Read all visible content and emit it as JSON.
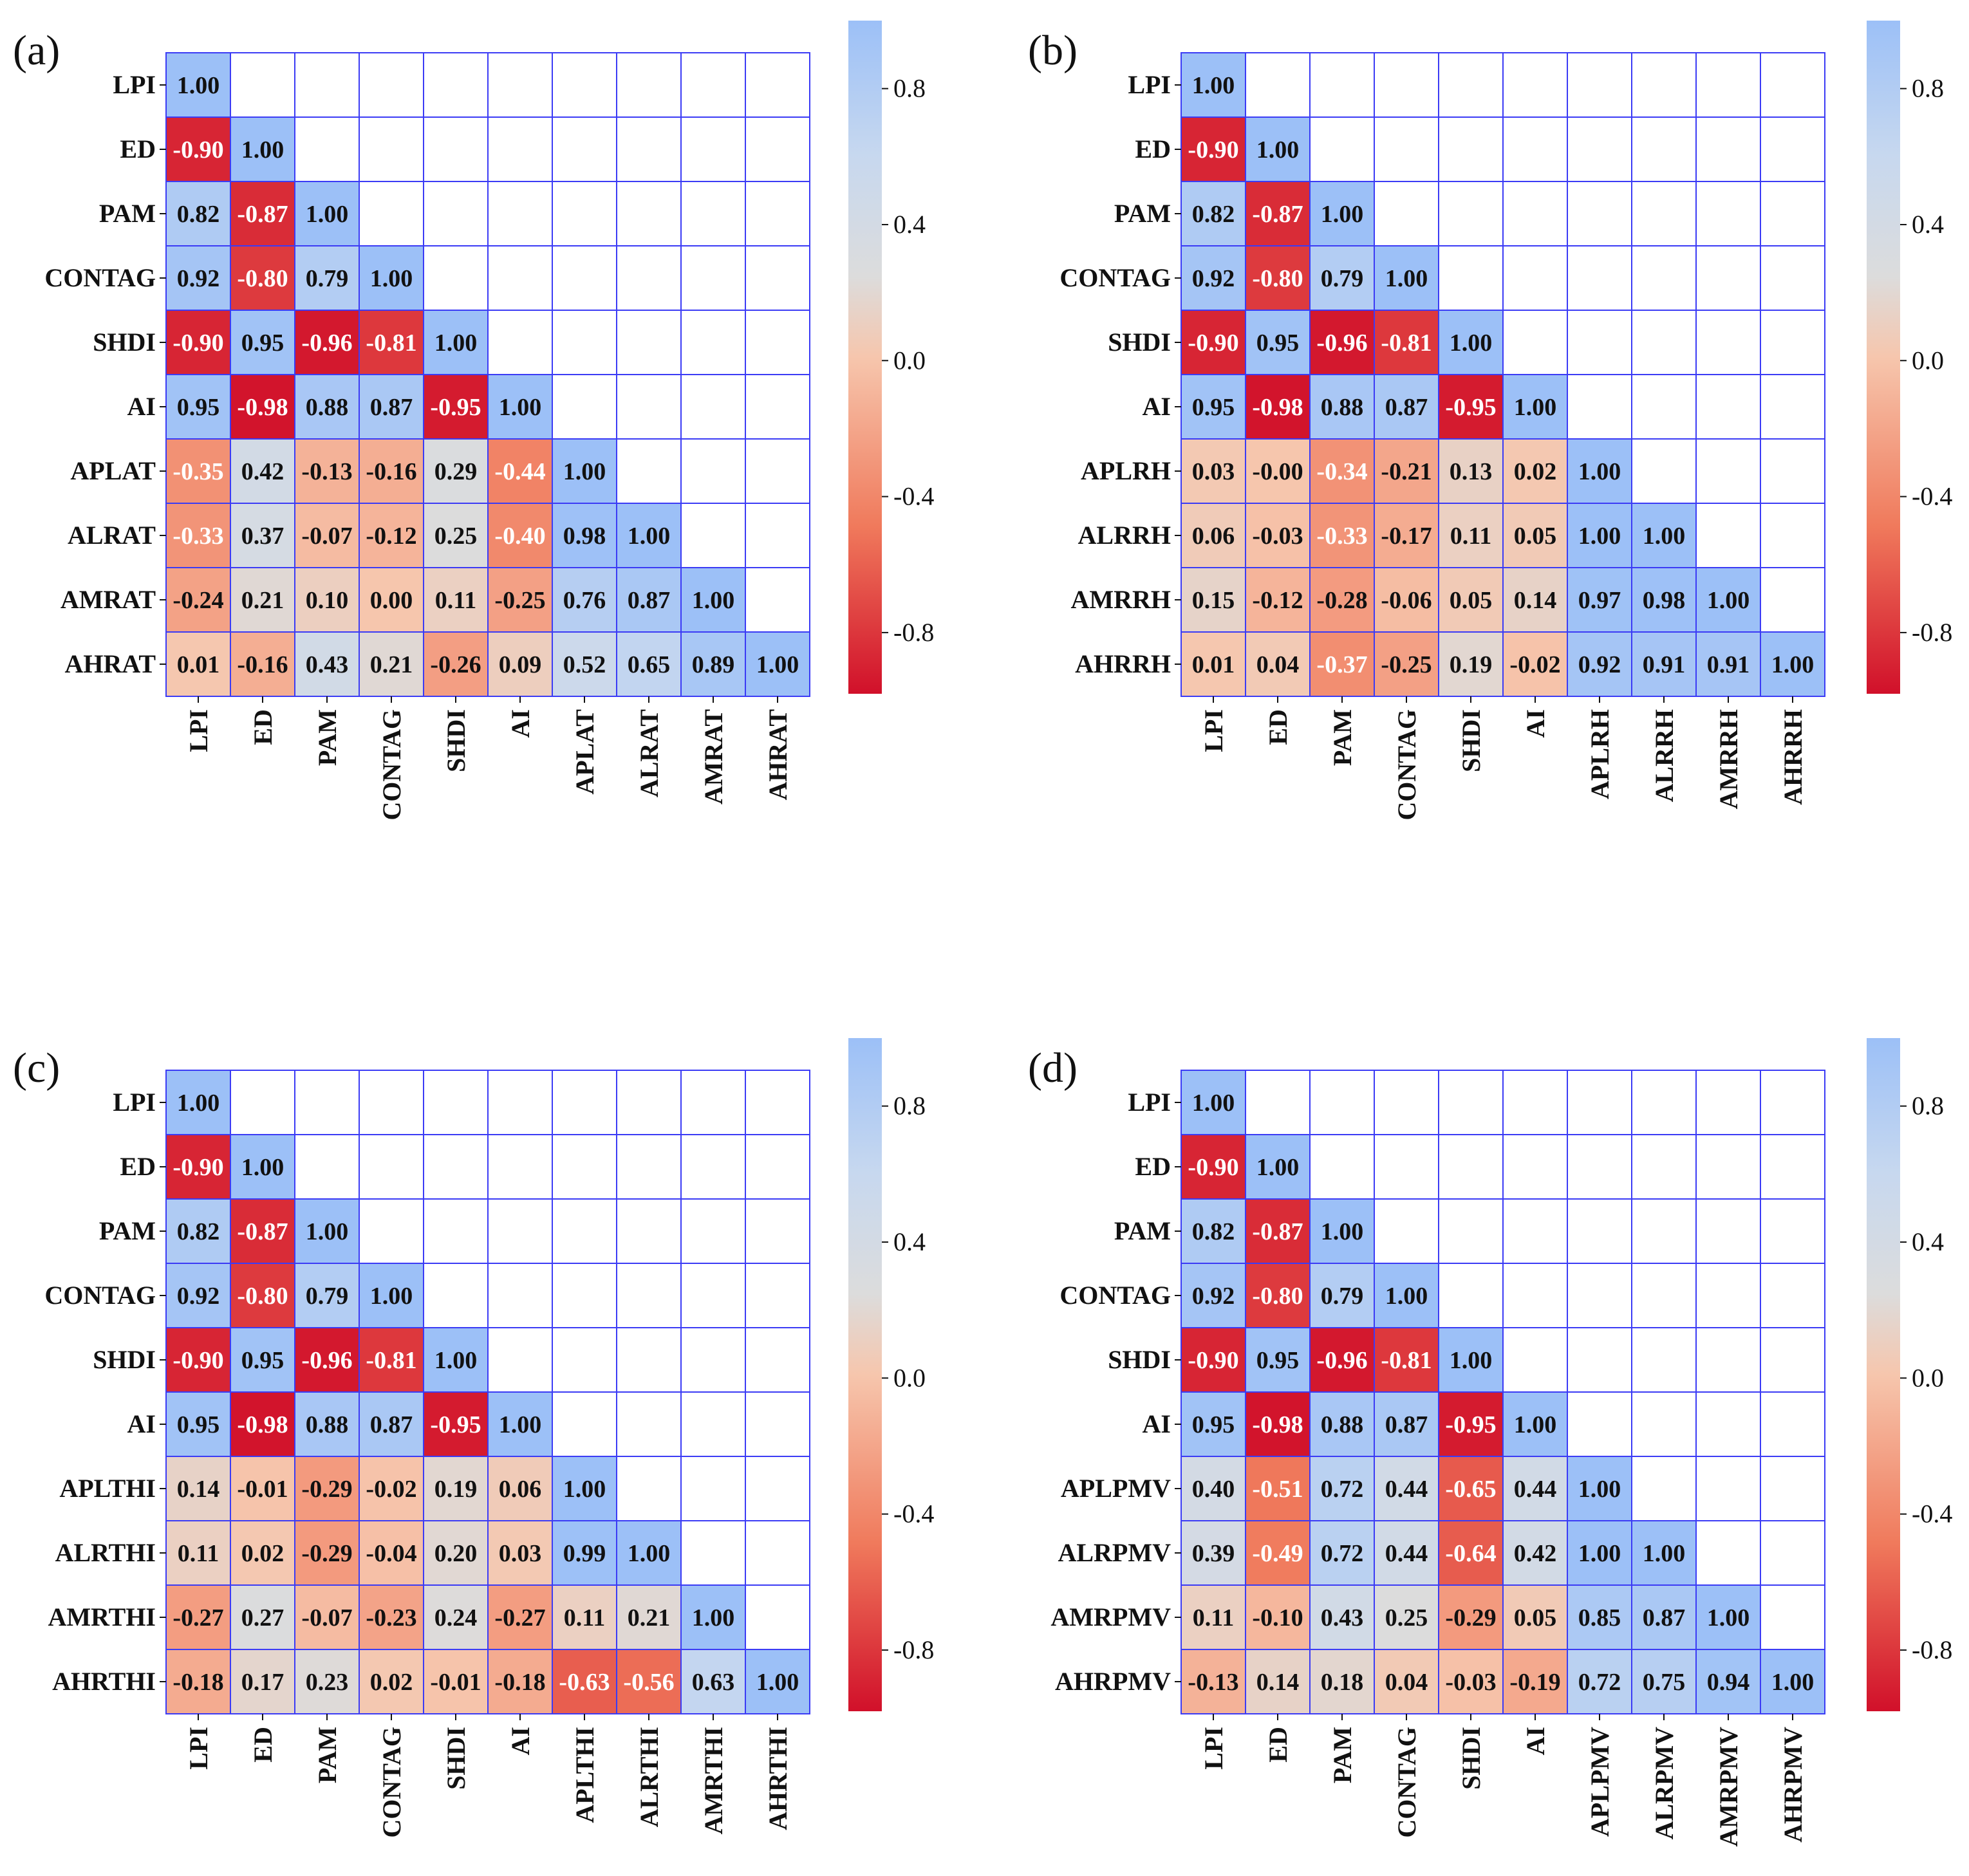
{
  "figure": {
    "colorbar": {
      "ticks": [
        0.8,
        0.4,
        0.0,
        -0.4,
        -0.8
      ],
      "tick_labels": [
        "0.8",
        "0.4",
        "0.0",
        "-0.4",
        "-0.8"
      ],
      "range": [
        -0.98,
        1.0
      ]
    },
    "colors": {
      "grid_line": "#3b3bf5",
      "negative_end": "#d1102a",
      "neutral": "#dcdcdc",
      "positive_end": "#9cc0f7"
    }
  },
  "chart_data": [
    {
      "type": "heatmap",
      "panel_label": "(a)",
      "variables": [
        "LPI",
        "ED",
        "PAM",
        "CONTAG",
        "SHDI",
        "AI",
        "APLAT",
        "ALRAT",
        "AMRAT",
        "AHRAT"
      ],
      "matrix": [
        [
          1.0
        ],
        [
          -0.9,
          1.0
        ],
        [
          0.82,
          -0.87,
          1.0
        ],
        [
          0.92,
          -0.8,
          0.79,
          1.0
        ],
        [
          -0.9,
          0.95,
          -0.96,
          -0.81,
          1.0
        ],
        [
          0.95,
          -0.98,
          0.88,
          0.87,
          -0.95,
          1.0
        ],
        [
          -0.35,
          0.42,
          -0.13,
          -0.16,
          0.29,
          -0.44,
          1.0
        ],
        [
          -0.33,
          0.37,
          -0.07,
          -0.12,
          0.25,
          -0.4,
          0.98,
          1.0
        ],
        [
          -0.24,
          0.21,
          0.1,
          0.0,
          0.11,
          -0.25,
          0.76,
          0.87,
          1.0
        ],
        [
          0.01,
          -0.16,
          0.43,
          0.21,
          -0.26,
          0.09,
          0.52,
          0.65,
          0.89,
          1.0
        ]
      ]
    },
    {
      "type": "heatmap",
      "panel_label": "(b)",
      "variables": [
        "LPI",
        "ED",
        "PAM",
        "CONTAG",
        "SHDI",
        "AI",
        "APLRH",
        "ALRRH",
        "AMRRH",
        "AHRRH"
      ],
      "matrix": [
        [
          1.0
        ],
        [
          -0.9,
          1.0
        ],
        [
          0.82,
          -0.87,
          1.0
        ],
        [
          0.92,
          -0.8,
          0.79,
          1.0
        ],
        [
          -0.9,
          0.95,
          -0.96,
          -0.81,
          1.0
        ],
        [
          0.95,
          -0.98,
          0.88,
          0.87,
          -0.95,
          1.0
        ],
        [
          0.03,
          -0.0,
          -0.34,
          -0.21,
          0.13,
          0.02,
          1.0
        ],
        [
          0.06,
          -0.03,
          -0.33,
          -0.17,
          0.11,
          0.05,
          1.0,
          1.0
        ],
        [
          0.15,
          -0.12,
          -0.28,
          -0.06,
          0.05,
          0.14,
          0.97,
          0.98,
          1.0
        ],
        [
          0.01,
          0.04,
          -0.37,
          -0.25,
          0.19,
          -0.02,
          0.92,
          0.91,
          0.91,
          1.0
        ]
      ],
      "cell_text": {
        "6": {
          "1": "-0.00"
        }
      }
    },
    {
      "type": "heatmap",
      "panel_label": "(c)",
      "variables": [
        "LPI",
        "ED",
        "PAM",
        "CONTAG",
        "SHDI",
        "AI",
        "APLTHI",
        "ALRTHI",
        "AMRTHI",
        "AHRTHI"
      ],
      "matrix": [
        [
          1.0
        ],
        [
          -0.9,
          1.0
        ],
        [
          0.82,
          -0.87,
          1.0
        ],
        [
          0.92,
          -0.8,
          0.79,
          1.0
        ],
        [
          -0.9,
          0.95,
          -0.96,
          -0.81,
          1.0
        ],
        [
          0.95,
          -0.98,
          0.88,
          0.87,
          -0.95,
          1.0
        ],
        [
          0.14,
          -0.01,
          -0.29,
          -0.02,
          0.19,
          0.06,
          1.0
        ],
        [
          0.11,
          0.02,
          -0.29,
          -0.04,
          0.2,
          0.03,
          0.99,
          1.0
        ],
        [
          -0.27,
          0.27,
          -0.07,
          -0.23,
          0.24,
          -0.27,
          0.11,
          0.21,
          1.0
        ],
        [
          -0.18,
          0.17,
          0.23,
          0.02,
          -0.01,
          -0.18,
          -0.63,
          -0.56,
          0.63,
          1.0
        ]
      ]
    },
    {
      "type": "heatmap",
      "panel_label": "(d)",
      "variables": [
        "LPI",
        "ED",
        "PAM",
        "CONTAG",
        "SHDI",
        "AI",
        "APLPMV",
        "ALRPMV",
        "AMRPMV",
        "AHRPMV"
      ],
      "matrix": [
        [
          1.0
        ],
        [
          -0.9,
          1.0
        ],
        [
          0.82,
          -0.87,
          1.0
        ],
        [
          0.92,
          -0.8,
          0.79,
          1.0
        ],
        [
          -0.9,
          0.95,
          -0.96,
          -0.81,
          1.0
        ],
        [
          0.95,
          -0.98,
          0.88,
          0.87,
          -0.95,
          1.0
        ],
        [
          0.4,
          -0.51,
          0.72,
          0.44,
          -0.65,
          0.44,
          1.0
        ],
        [
          0.39,
          -0.49,
          0.72,
          0.44,
          -0.64,
          0.42,
          1.0,
          1.0
        ],
        [
          0.11,
          -0.1,
          0.43,
          0.25,
          -0.29,
          0.05,
          0.85,
          0.87,
          1.0
        ],
        [
          -0.13,
          0.14,
          0.18,
          0.04,
          -0.03,
          -0.19,
          0.72,
          0.75,
          0.94,
          1.0
        ]
      ]
    }
  ]
}
